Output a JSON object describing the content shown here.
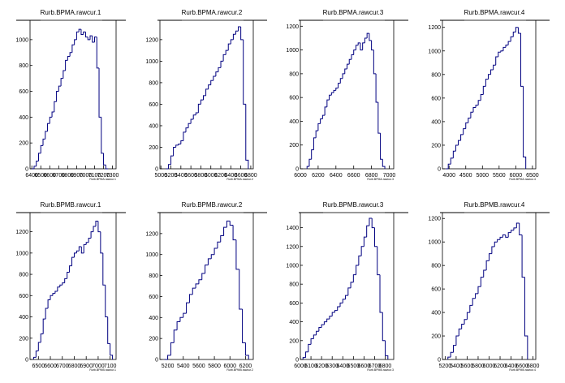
{
  "chart_data": [
    {
      "type": "histogram",
      "title": "Rurb.BPMA.rawcur.1",
      "x_label": "Rurb.BPMA.rawcur.1",
      "color": "#000080",
      "bins": [
        6400,
        6425,
        6450,
        6475,
        6500,
        6525,
        6550,
        6575,
        6600,
        6625,
        6650,
        6675,
        6700,
        6725,
        6750,
        6775,
        6800,
        6825,
        6850,
        6875,
        6900,
        6925,
        6950,
        6975,
        7000,
        7025,
        7050,
        7075,
        7100,
        7125,
        7150,
        7175,
        7200,
        7225,
        7250
      ],
      "counts": [
        0,
        20,
        60,
        120,
        180,
        230,
        290,
        350,
        400,
        440,
        520,
        600,
        640,
        700,
        760,
        840,
        870,
        900,
        960,
        1000,
        1060,
        1080,
        1040,
        1060,
        1020,
        1000,
        1030,
        980,
        1020,
        780,
        400,
        120,
        30,
        0
      ],
      "xlim": [
        6380,
        7340
      ],
      "xticks": [
        6400,
        6500,
        6600,
        6700,
        6800,
        6900,
        7000,
        7100,
        7200,
        7300
      ],
      "ylim": [
        0,
        1150
      ],
      "yticks": [
        0,
        200,
        400,
        600,
        800,
        1000
      ]
    },
    {
      "type": "histogram",
      "title": "Rurb.BPMA.rawcur.2",
      "x_label": "Rurb.BPMA.rawcur.2",
      "color": "#000080",
      "bins": [
        5100,
        5150,
        5200,
        5250,
        5300,
        5350,
        5400,
        5450,
        5500,
        5550,
        5600,
        5650,
        5700,
        5750,
        5800,
        5850,
        5900,
        5950,
        6000,
        6050,
        6100,
        6150,
        6200,
        6250,
        6300,
        6350,
        6400,
        6450,
        6500,
        6550,
        6600,
        6650,
        6700,
        6750
      ],
      "counts": [
        0,
        40,
        120,
        200,
        220,
        230,
        260,
        340,
        380,
        420,
        460,
        500,
        520,
        600,
        640,
        680,
        740,
        780,
        820,
        860,
        900,
        940,
        1000,
        1060,
        1100,
        1160,
        1200,
        1250,
        1280,
        1320,
        1200,
        600,
        80
      ],
      "xlim": [
        4980,
        6850
      ],
      "xticks": [
        5000,
        5200,
        5400,
        5600,
        5800,
        6000,
        6200,
        6400,
        6600,
        6800
      ],
      "ylim": [
        0,
        1380
      ],
      "yticks": [
        0,
        200,
        400,
        600,
        800,
        1000,
        1200
      ]
    },
    {
      "type": "histogram",
      "title": "Rurb.BPMA.rawcur.3",
      "x_label": "Rurb.BPMA.rawcur.3",
      "color": "#000080",
      "bins": [
        6075,
        6100,
        6125,
        6150,
        6175,
        6200,
        6225,
        6250,
        6275,
        6300,
        6325,
        6350,
        6375,
        6400,
        6425,
        6450,
        6475,
        6500,
        6525,
        6550,
        6575,
        6600,
        6625,
        6650,
        6675,
        6700,
        6725,
        6750,
        6775,
        6800,
        6825,
        6850,
        6875,
        6900,
        6925,
        6950
      ],
      "counts": [
        20,
        80,
        160,
        260,
        320,
        380,
        420,
        450,
        520,
        580,
        620,
        640,
        660,
        680,
        720,
        760,
        800,
        840,
        880,
        920,
        960,
        1000,
        1040,
        1060,
        1000,
        1060,
        1100,
        1140,
        1080,
        1000,
        800,
        560,
        300,
        80,
        20
      ],
      "xlim": [
        6000,
        7050
      ],
      "xticks": [
        6000,
        6200,
        6400,
        6600,
        6800,
        7000
      ],
      "ylim": [
        0,
        1250
      ],
      "yticks": [
        0,
        200,
        400,
        600,
        800,
        1000,
        1200
      ]
    },
    {
      "type": "histogram",
      "title": "Rurb.BPMA.rawcur.4",
      "x_label": "Rurb.BPMA.rawcur.4",
      "color": "#000080",
      "bins": [
        3900,
        3975,
        4050,
        4125,
        4200,
        4275,
        4350,
        4425,
        4500,
        4575,
        4650,
        4725,
        4800,
        4875,
        4950,
        5025,
        5100,
        5175,
        5250,
        5325,
        5400,
        5475,
        5550,
        5625,
        5700,
        5775,
        5850,
        5925,
        6000,
        6075,
        6150,
        6225,
        6300
      ],
      "counts": [
        0,
        40,
        90,
        150,
        200,
        240,
        290,
        340,
        390,
        430,
        480,
        520,
        540,
        580,
        630,
        700,
        760,
        800,
        840,
        880,
        950,
        990,
        1000,
        1030,
        1050,
        1080,
        1120,
        1160,
        1200,
        1150,
        700,
        100
      ],
      "xlim": [
        3800,
        6600
      ],
      "xticks": [
        4000,
        4500,
        5000,
        5500,
        6000,
        6500
      ],
      "ylim": [
        0,
        1260
      ],
      "yticks": [
        0,
        200,
        400,
        600,
        800,
        1000,
        1200
      ]
    },
    {
      "type": "histogram",
      "title": "Rurb.BPMB.rawcur.1",
      "x_label": "Rurb.BPMB.rawcur.1",
      "color": "#000080",
      "bins": [
        6460,
        6480,
        6500,
        6520,
        6540,
        6560,
        6580,
        6600,
        6620,
        6640,
        6660,
        6680,
        6700,
        6720,
        6740,
        6760,
        6780,
        6800,
        6820,
        6840,
        6860,
        6880,
        6900,
        6920,
        6940,
        6960,
        6980,
        7000,
        7020,
        7040,
        7060,
        7080,
        7100,
        7120
      ],
      "counts": [
        20,
        80,
        160,
        240,
        380,
        480,
        560,
        600,
        620,
        640,
        680,
        700,
        720,
        760,
        820,
        880,
        960,
        1000,
        1020,
        1060,
        1000,
        1080,
        1100,
        1140,
        1200,
        1250,
        1300,
        1200,
        1000,
        700,
        400,
        150,
        40
      ],
      "xlim": [
        6430,
        7150
      ],
      "xticks": [
        6500,
        6600,
        6700,
        6800,
        6900,
        7000,
        7100
      ],
      "ylim": [
        0,
        1380
      ],
      "yticks": [
        0,
        200,
        400,
        600,
        800,
        1000,
        1200
      ]
    },
    {
      "type": "histogram",
      "title": "Rurb.BPMB.rawcur.2",
      "x_label": "Rurb.BPMB.rawcur.2",
      "color": "#000080",
      "bins": [
        5160,
        5200,
        5240,
        5280,
        5320,
        5360,
        5400,
        5440,
        5480,
        5520,
        5560,
        5600,
        5640,
        5680,
        5720,
        5760,
        5800,
        5840,
        5880,
        5920,
        5960,
        6000,
        6040,
        6080,
        6120,
        6160,
        6200,
        6240
      ],
      "counts": [
        0,
        40,
        160,
        280,
        360,
        400,
        440,
        540,
        620,
        680,
        720,
        760,
        820,
        900,
        960,
        1000,
        1060,
        1120,
        1180,
        1260,
        1320,
        1280,
        1140,
        860,
        480,
        160,
        40
      ],
      "xlim": [
        5100,
        6300
      ],
      "xticks": [
        5200,
        5400,
        5600,
        5800,
        6000,
        6200
      ],
      "ylim": [
        0,
        1400
      ],
      "yticks": [
        0,
        200,
        400,
        600,
        800,
        1000,
        1200
      ]
    },
    {
      "type": "histogram",
      "title": "Rurb.BPMB.rawcur.3",
      "x_label": "Rurb.BPMB.rawcur.3",
      "color": "#000080",
      "bins": [
        6025,
        6050,
        6075,
        6100,
        6125,
        6150,
        6175,
        6200,
        6225,
        6250,
        6275,
        6300,
        6325,
        6350,
        6375,
        6400,
        6425,
        6450,
        6475,
        6500,
        6525,
        6550,
        6575,
        6600,
        6625,
        6650,
        6675,
        6700,
        6725,
        6750,
        6775,
        6800,
        6825
      ],
      "counts": [
        20,
        80,
        160,
        220,
        260,
        300,
        340,
        370,
        400,
        430,
        460,
        500,
        520,
        560,
        600,
        640,
        680,
        760,
        820,
        900,
        1000,
        1100,
        1200,
        1300,
        1420,
        1500,
        1400,
        1200,
        900,
        500,
        200,
        40
      ],
      "xlim": [
        6000,
        6880
      ],
      "xticks": [
        6000,
        6100,
        6200,
        6300,
        6400,
        6500,
        6600,
        6700,
        6800
      ],
      "ylim": [
        0,
        1560
      ],
      "yticks": [
        0,
        200,
        400,
        600,
        800,
        1000,
        1200,
        1400
      ]
    },
    {
      "type": "histogram",
      "title": "Rurb.BPMB.rawcur.4",
      "x_label": "Rurb.BPMB.rawcur.4",
      "color": "#000080",
      "bins": [
        5250,
        5300,
        5350,
        5400,
        5450,
        5500,
        5550,
        5600,
        5650,
        5700,
        5750,
        5800,
        5850,
        5900,
        5950,
        6000,
        6050,
        6100,
        6150,
        6200,
        6250,
        6300,
        6350,
        6400,
        6450,
        6500,
        6550,
        6600,
        6650,
        6700
      ],
      "counts": [
        20,
        60,
        120,
        200,
        260,
        300,
        340,
        400,
        460,
        520,
        560,
        620,
        700,
        760,
        840,
        900,
        960,
        1000,
        1020,
        1040,
        1060,
        1040,
        1080,
        1100,
        1120,
        1160,
        1060,
        700,
        200
      ],
      "xlim": [
        5150,
        6850
      ],
      "xticks": [
        5200,
        5400,
        5600,
        5800,
        6000,
        6200,
        6400,
        6600,
        6800
      ],
      "ylim": [
        0,
        1250
      ],
      "yticks": [
        0,
        200,
        400,
        600,
        800,
        1000,
        1200
      ]
    }
  ]
}
